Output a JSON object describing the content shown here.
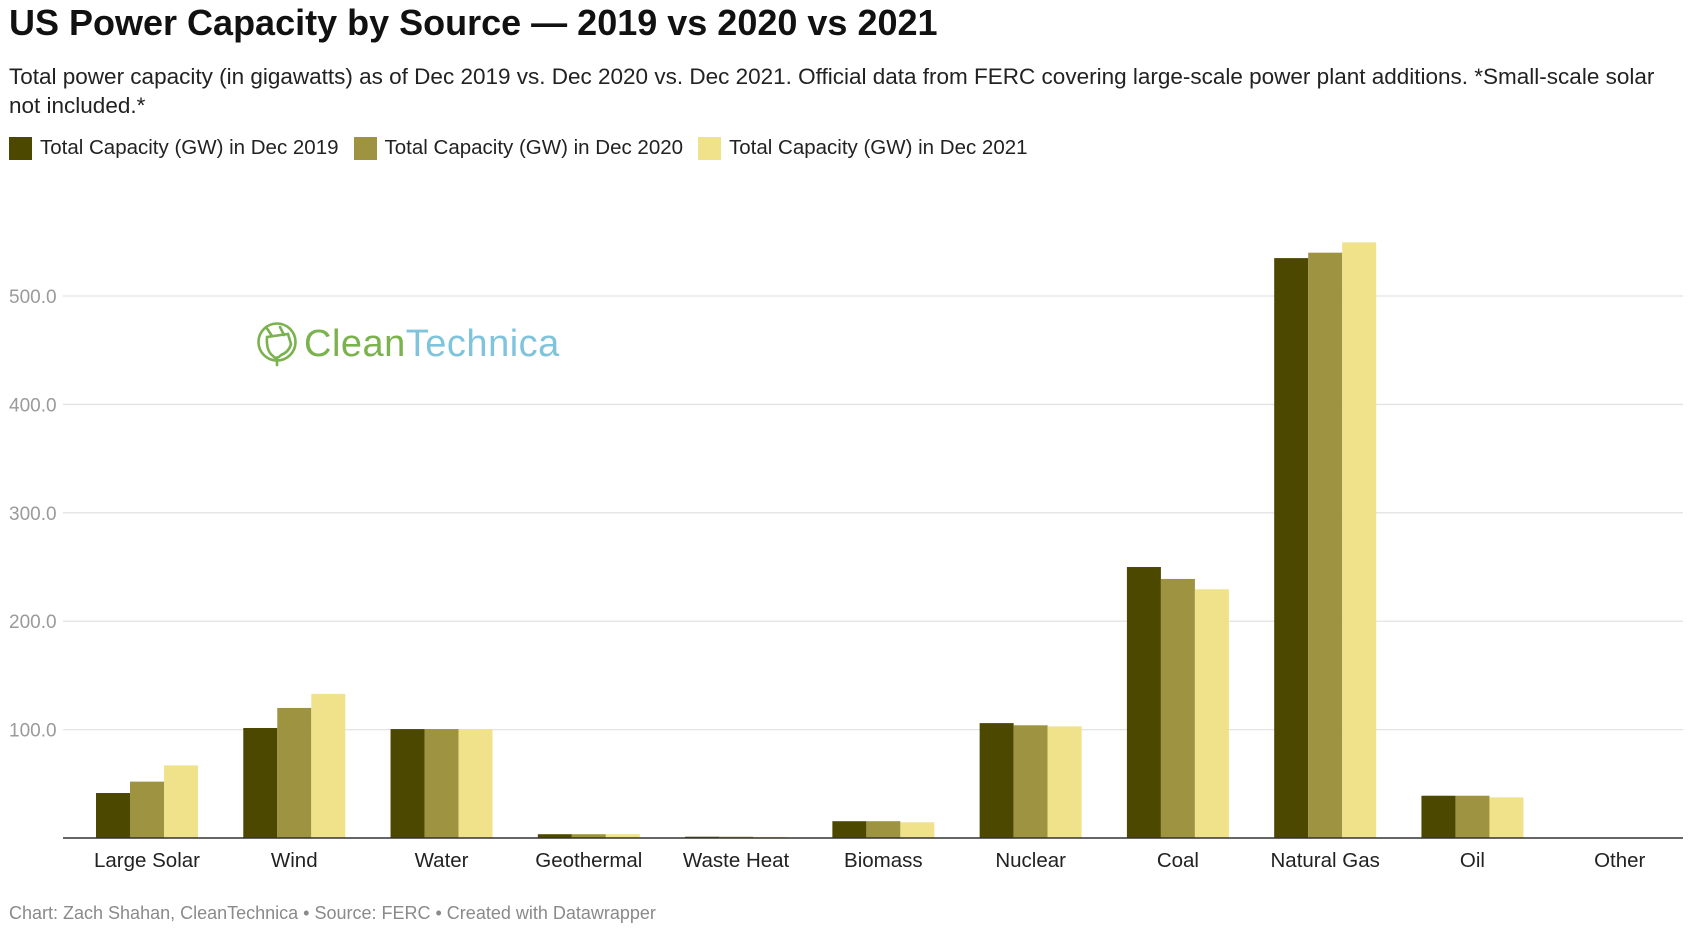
{
  "chart_data": {
    "type": "bar",
    "title": "US Power Capacity by Source — 2019 vs 2020 vs 2021",
    "subtitle": "Total power capacity (in gigawatts) as of Dec 2019 vs. Dec 2020 vs. Dec 2021. Official data from FERC covering large-scale power plant additions. *Small-scale solar not included.*",
    "xlabel": "",
    "ylabel": "",
    "ylim": [
      0,
      560
    ],
    "yticks": [
      100,
      200,
      300,
      400,
      500
    ],
    "ytick_labels": [
      "100.0",
      "200.0",
      "300.0",
      "400.0",
      "500.0"
    ],
    "grid": true,
    "legend_position": "top-left",
    "categories": [
      "Large Solar",
      "Wind",
      "Water",
      "Geothermal",
      "Waste Heat",
      "Biomass",
      "Nuclear",
      "Coal",
      "Natural Gas",
      "Oil",
      "Other"
    ],
    "series": [
      {
        "name": "Total Capacity (GW) in Dec 2019",
        "color": "#4d4800",
        "values": [
          41.5,
          101.5,
          100.5,
          3.5,
          1.2,
          15.5,
          106,
          250,
          535,
          39,
          0.3
        ]
      },
      {
        "name": "Total Capacity (GW) in Dec 2020",
        "color": "#9d9340",
        "values": [
          52,
          120,
          100.5,
          3.5,
          1.2,
          15.5,
          104,
          239,
          540,
          39,
          0.3
        ]
      },
      {
        "name": "Total Capacity (GW) in Dec 2021",
        "color": "#f0e28a",
        "values": [
          67,
          133,
          100.5,
          3.5,
          1.0,
          14.5,
          103,
          229.5,
          549.5,
          37.5,
          0.3
        ]
      }
    ],
    "footer": "Chart: Zach Shahan, CleanTechnica • Source: FERC • Created with Datawrapper"
  },
  "watermark": {
    "part1": "Clean",
    "part2": "Technica",
    "color1": "#7ab24e",
    "color2": "#7fc4dc"
  },
  "colors": {
    "grid": "#e3e3e3",
    "axis": "#333333"
  }
}
